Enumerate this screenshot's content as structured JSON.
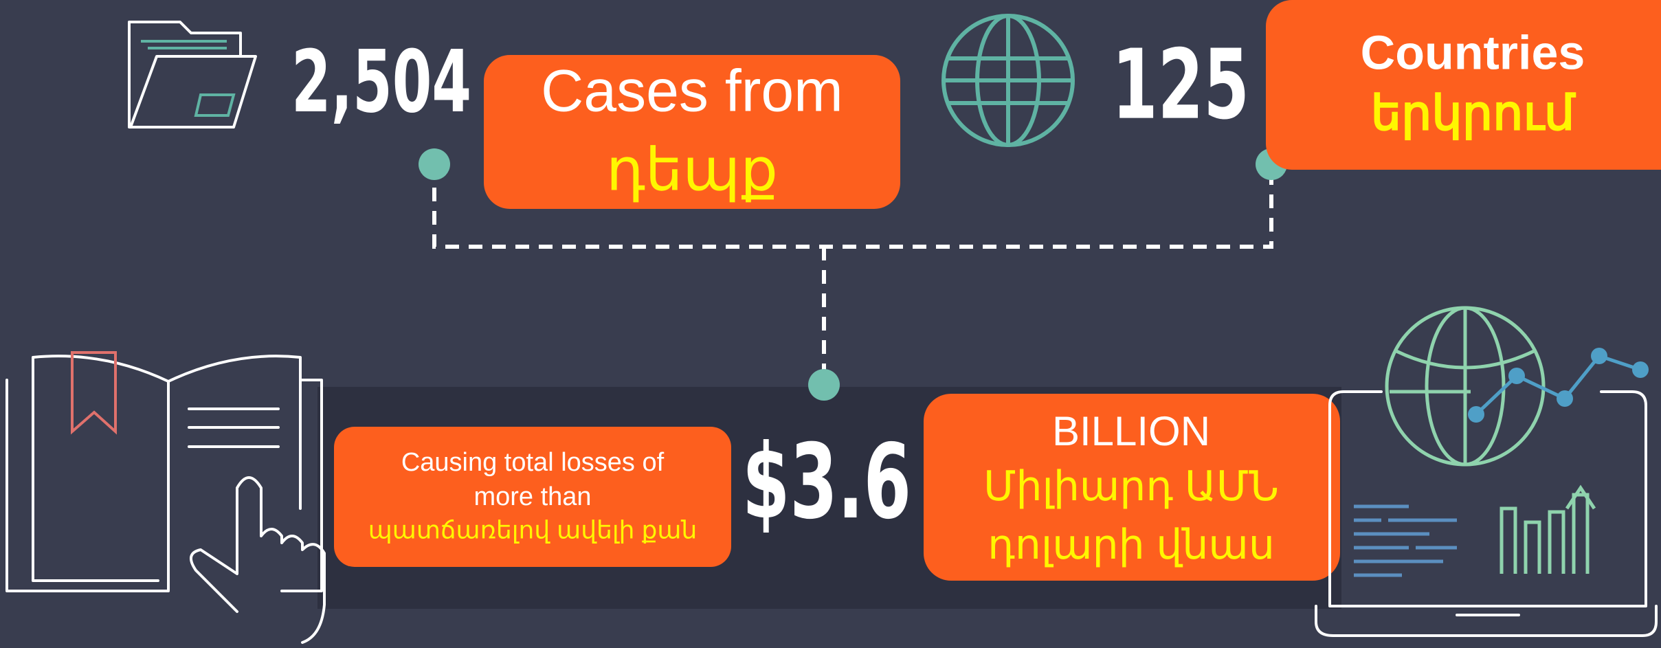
{
  "stats": [
    {
      "number": "2,504",
      "label": "Cases from",
      "translation": "դեպք"
    },
    {
      "number": "125",
      "label": "Countries",
      "translation": "երկրում"
    },
    {
      "prefix_label": "Causing total losses of more than",
      "prefix_translation": "պատճառելով ավելի քան",
      "number": "$3.6",
      "label": "BILLION",
      "translation": [
        "Միլիարդ ԱՄՆ",
        "դոլարի վնաս"
      ]
    }
  ]
}
